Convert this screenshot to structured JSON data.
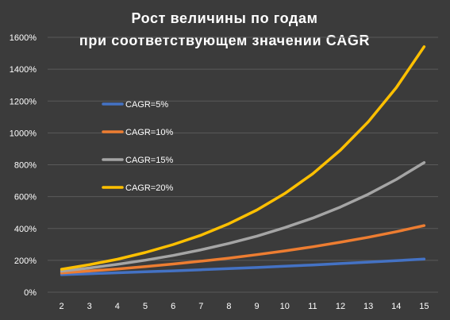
{
  "chart_data": {
    "type": "line",
    "title": [
      "Рост величины по годам",
      "при соответствующем значении CAGR"
    ],
    "xlabel": "",
    "ylabel": "",
    "categories": [
      2,
      3,
      4,
      5,
      6,
      7,
      8,
      9,
      10,
      11,
      12,
      13,
      14,
      15
    ],
    "ylim": [
      0,
      1600
    ],
    "ytick_values": [
      0,
      200,
      400,
      600,
      800,
      1000,
      1200,
      1400,
      1600
    ],
    "ytick_labels": [
      "0%",
      "200%",
      "400%",
      "600%",
      "800%",
      "1000%",
      "1200%",
      "1400%",
      "1600%"
    ],
    "grid": true,
    "legend_position": "left-inside",
    "series": [
      {
        "name": "CAGR=5%",
        "color": "#4472c4",
        "values": [
          110,
          116,
          122,
          128,
          134,
          141,
          148,
          155,
          163,
          171,
          180,
          189,
          198,
          208
        ]
      },
      {
        "name": "CAGR=10%",
        "color": "#ed7d31",
        "values": [
          121,
          133,
          146,
          161,
          177,
          195,
          214,
          236,
          259,
          285,
          314,
          345,
          380,
          418
        ]
      },
      {
        "name": "CAGR=15%",
        "color": "#a5a5a5",
        "values": [
          132,
          152,
          175,
          201,
          231,
          266,
          306,
          352,
          405,
          465,
          535,
          615,
          708,
          814
        ]
      },
      {
        "name": "CAGR=20%",
        "color": "#ffc000",
        "values": [
          144,
          173,
          207,
          249,
          299,
          358,
          430,
          516,
          619,
          743,
          892,
          1070,
          1284,
          1541
        ]
      }
    ]
  }
}
